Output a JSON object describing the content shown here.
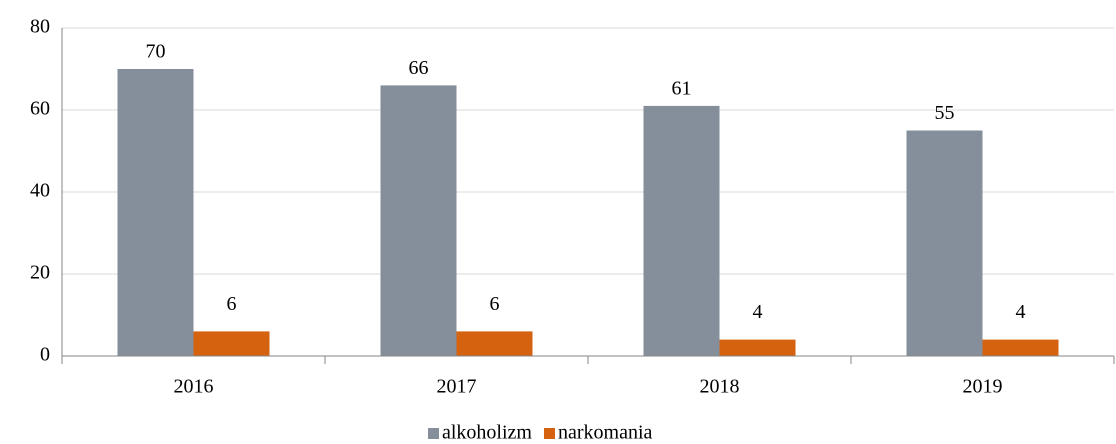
{
  "chart_data": {
    "type": "bar",
    "categories": [
      "2016",
      "2017",
      "2018",
      "2019"
    ],
    "series": [
      {
        "name": "alkoholizm",
        "color": "#858f9c",
        "values": [
          70,
          66,
          61,
          55
        ]
      },
      {
        "name": "narkomania",
        "color": "#d4620f",
        "values": [
          6,
          6,
          4,
          4
        ]
      }
    ],
    "ylim": [
      0,
      80
    ],
    "yticks": [
      0,
      20,
      40,
      60,
      80
    ],
    "grid": true,
    "legend": "bottom"
  }
}
